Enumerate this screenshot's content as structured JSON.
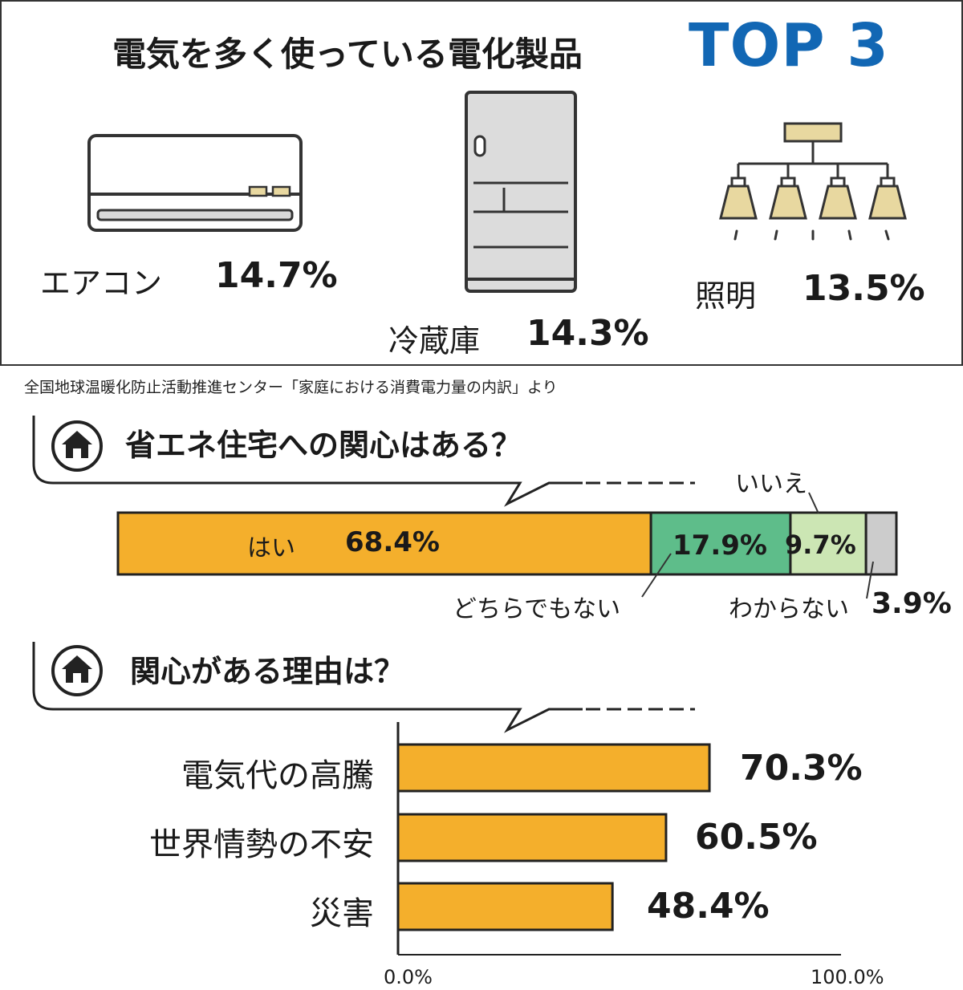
{
  "header": {
    "title": "電気を多く使っている電化製品",
    "title_top": "TOP 3",
    "accent_color": "#1267b4"
  },
  "appliances": [
    {
      "label": "エアコン",
      "value": "14.7%",
      "icon": "air-conditioner-icon"
    },
    {
      "label": "冷蔵庫",
      "value": "14.3%",
      "icon": "refrigerator-icon"
    },
    {
      "label": "照明",
      "value": "13.5%",
      "icon": "ceiling-light-icon"
    }
  ],
  "source": "全国地球温暖化防止活動推進センター「家庭における消費電力量の内訳」より",
  "question1": {
    "title": "省エネ住宅への関心はある？",
    "icon": "home-icon"
  },
  "question2": {
    "title": "関心がある理由は？",
    "icon": "home-icon"
  },
  "chart_data": [
    {
      "type": "bar",
      "orientation": "horizontal-stacked",
      "title": "省エネ住宅への関心はある？",
      "categories": [
        "はい",
        "どちらでもない",
        "いいえ",
        "わからない"
      ],
      "values": [
        68.4,
        17.9,
        9.7,
        3.9
      ],
      "value_labels": [
        "68.4%",
        "17.9%",
        "9.7%",
        "3.9%"
      ],
      "colors": [
        "#f4af2c",
        "#5ebd8a",
        "#cce6b4",
        "#cccccc"
      ]
    },
    {
      "type": "bar",
      "orientation": "horizontal",
      "title": "関心がある理由は？",
      "categories": [
        "電気代の高騰",
        "世界情勢の不安",
        "災害"
      ],
      "values": [
        70.3,
        60.5,
        48.4
      ],
      "value_labels": [
        "70.3%",
        "60.5%",
        "48.4%"
      ],
      "xlim": [
        0,
        100
      ],
      "x_tick_labels": [
        "0.0%",
        "100.0%"
      ],
      "color": "#f4af2c"
    }
  ]
}
